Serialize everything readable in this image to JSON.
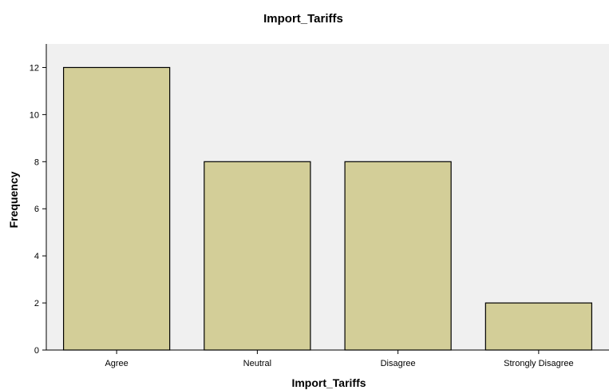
{
  "chart_data": {
    "type": "bar",
    "title": "Import_Tariffs",
    "xlabel": "Import_Tariffs",
    "ylabel": "Frequency",
    "categories": [
      "Agree",
      "Neutral",
      "Disagree",
      "Strongly Disagree"
    ],
    "values": [
      12,
      8,
      8,
      2
    ],
    "ylim": [
      0,
      13
    ],
    "yticks": [
      0,
      2,
      4,
      6,
      8,
      10,
      12
    ],
    "grid": false,
    "legend": "none",
    "colors": {
      "bar_fill": "#d3ce98",
      "bar_stroke": "#000000",
      "plot_background": "#f0f0f0"
    }
  }
}
